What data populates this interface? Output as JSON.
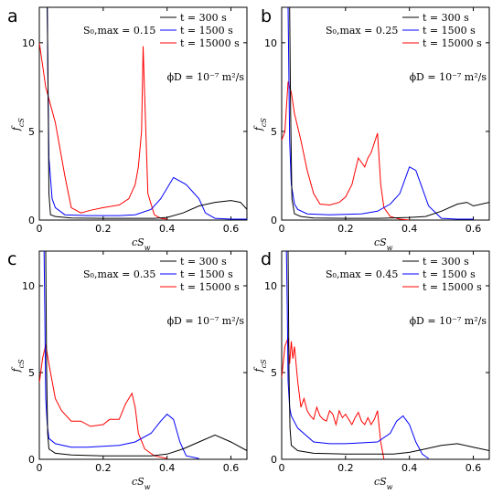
{
  "chart_data": [
    {
      "type": "line",
      "panel_label": "a",
      "annotation": "S₀,max = 0.15",
      "diffusion_note": "ϕD = 10⁻⁷ m²/s",
      "xlabel": "cS_w",
      "ylabel": "f_cS",
      "xlim": [
        0,
        0.65
      ],
      "ylim": [
        0,
        12
      ],
      "x_ticks": [
        0,
        0.2,
        0.4,
        0.6
      ],
      "x_tick_labels": [
        "0",
        "0.2",
        "0.4",
        "0.6"
      ],
      "y_ticks": [
        0,
        5,
        10
      ],
      "y_tick_labels": [
        "0",
        "5",
        "10"
      ],
      "legend": [
        "t = 300 s",
        "t = 1500 s",
        "t = 15000 s"
      ],
      "series": [
        {
          "name": "t = 300 s",
          "color": "#000000",
          "x": [
            0.025,
            0.028,
            0.03,
            0.035,
            0.05,
            0.1,
            0.2,
            0.3,
            0.36,
            0.4,
            0.45,
            0.5,
            0.55,
            0.6,
            0.63,
            0.65
          ],
          "y": [
            12,
            6,
            1.5,
            0.3,
            0.2,
            0.12,
            0.1,
            0.1,
            0.1,
            0.15,
            0.4,
            0.8,
            1.0,
            1.1,
            1.0,
            0.6
          ]
        },
        {
          "name": "t = 1500 s",
          "color": "#0000ff",
          "x": [
            0.025,
            0.027,
            0.03,
            0.04,
            0.05,
            0.08,
            0.15,
            0.25,
            0.3,
            0.35,
            0.38,
            0.42,
            0.46,
            0.5,
            0.52,
            0.55,
            0.6,
            0.65
          ],
          "y": [
            12,
            8,
            3.5,
            1.2,
            0.7,
            0.3,
            0.25,
            0.25,
            0.3,
            0.6,
            1.2,
            2.4,
            2.0,
            1.2,
            0.4,
            0.1,
            0.05,
            0.05
          ]
        },
        {
          "name": "t = 15000 s",
          "color": "#ff0000",
          "x": [
            0.0,
            0.02,
            0.05,
            0.08,
            0.1,
            0.13,
            0.16,
            0.2,
            0.25,
            0.28,
            0.3,
            0.31,
            0.32,
            0.325,
            0.33,
            0.34,
            0.36,
            0.38,
            0.4
          ],
          "y": [
            10,
            7.5,
            5.5,
            2.5,
            0.7,
            0.4,
            0.55,
            0.7,
            0.85,
            1.2,
            2.0,
            3.0,
            5.0,
            9.8,
            7.0,
            1.5,
            0.3,
            0.1,
            0.05
          ]
        }
      ]
    },
    {
      "type": "line",
      "panel_label": "b",
      "annotation": "S₀,max = 0.25",
      "diffusion_note": "ϕD = 10⁻⁷ m²/s",
      "xlabel": "cS_w",
      "ylabel": "f_cS",
      "xlim": [
        0,
        0.65
      ],
      "ylim": [
        0,
        12
      ],
      "x_ticks": [
        0,
        0.2,
        0.4,
        0.6
      ],
      "x_tick_labels": [
        "0",
        "0.2",
        "0.4",
        "0.6"
      ],
      "y_ticks": [
        0,
        5,
        10
      ],
      "y_tick_labels": [
        "0",
        "5",
        "10"
      ],
      "legend": [
        "t = 300 s",
        "t = 1500 s",
        "t = 15000 s"
      ],
      "series": [
        {
          "name": "t = 300 s",
          "color": "#000000",
          "x": [
            0.025,
            0.028,
            0.032,
            0.04,
            0.06,
            0.1,
            0.2,
            0.3,
            0.4,
            0.45,
            0.5,
            0.55,
            0.58,
            0.6,
            0.65
          ],
          "y": [
            12,
            6,
            1.2,
            0.35,
            0.2,
            0.12,
            0.1,
            0.1,
            0.15,
            0.2,
            0.5,
            0.9,
            1.0,
            0.8,
            1.0
          ]
        },
        {
          "name": "t = 1500 s",
          "color": "#0000ff",
          "x": [
            0.02,
            0.022,
            0.025,
            0.03,
            0.04,
            0.05,
            0.08,
            0.15,
            0.25,
            0.3,
            0.34,
            0.37,
            0.4,
            0.42,
            0.44,
            0.46,
            0.5,
            0.55,
            0.6
          ],
          "y": [
            12,
            9,
            4.5,
            2.0,
            0.9,
            0.6,
            0.35,
            0.3,
            0.35,
            0.5,
            0.9,
            1.5,
            3.0,
            2.8,
            1.8,
            0.8,
            0.1,
            0.05,
            0.05
          ]
        },
        {
          "name": "t = 15000 s",
          "color": "#ff0000",
          "x": [
            0.0,
            0.01,
            0.02,
            0.03,
            0.04,
            0.06,
            0.08,
            0.1,
            0.12,
            0.15,
            0.18,
            0.2,
            0.22,
            0.24,
            0.26,
            0.27,
            0.28,
            0.3,
            0.31,
            0.32,
            0.34,
            0.37,
            0.4
          ],
          "y": [
            4.5,
            5.0,
            7.8,
            7.2,
            6.0,
            4.5,
            2.8,
            1.5,
            0.9,
            0.85,
            1.0,
            1.3,
            2.0,
            3.5,
            3.0,
            3.5,
            3.8,
            4.9,
            2.0,
            0.7,
            0.2,
            0.05,
            0.0
          ]
        }
      ]
    },
    {
      "type": "line",
      "panel_label": "c",
      "annotation": "S₀,max = 0.35",
      "diffusion_note": "ϕD = 10⁻⁷ m²/s",
      "xlabel": "cS_w",
      "ylabel": "f_cS",
      "xlim": [
        0,
        0.65
      ],
      "ylim": [
        0,
        12
      ],
      "x_ticks": [
        0,
        0.2,
        0.4,
        0.6
      ],
      "x_tick_labels": [
        "0",
        "0.2",
        "0.4",
        "0.6"
      ],
      "y_ticks": [
        0,
        5,
        10
      ],
      "y_tick_labels": [
        "0",
        "5",
        "10"
      ],
      "legend": [
        "t = 300 s",
        "t = 1500 s",
        "t = 15000 s"
      ],
      "series": [
        {
          "name": "t = 300 s",
          "color": "#000000",
          "x": [
            0.02,
            0.023,
            0.026,
            0.03,
            0.05,
            0.1,
            0.2,
            0.3,
            0.35,
            0.4,
            0.45,
            0.5,
            0.55,
            0.6,
            0.65
          ],
          "y": [
            12,
            5,
            1.5,
            0.6,
            0.35,
            0.25,
            0.2,
            0.2,
            0.2,
            0.3,
            0.6,
            1.0,
            1.4,
            1.0,
            0.5
          ]
        },
        {
          "name": "t = 1500 s",
          "color": "#0000ff",
          "x": [
            0.015,
            0.018,
            0.02,
            0.025,
            0.03,
            0.05,
            0.1,
            0.15,
            0.25,
            0.3,
            0.35,
            0.38,
            0.4,
            0.42,
            0.44,
            0.46,
            0.5
          ],
          "y": [
            12,
            7,
            3.5,
            2.0,
            1.2,
            0.9,
            0.7,
            0.7,
            0.8,
            1.0,
            1.5,
            2.2,
            2.6,
            2.3,
            1.0,
            0.2,
            0.05
          ]
        },
        {
          "name": "t = 15000 s",
          "color": "#ff0000",
          "x": [
            0.0,
            0.01,
            0.02,
            0.03,
            0.05,
            0.07,
            0.1,
            0.13,
            0.16,
            0.2,
            0.22,
            0.25,
            0.27,
            0.29,
            0.3,
            0.31,
            0.33,
            0.36,
            0.4
          ],
          "y": [
            4.4,
            5.8,
            6.6,
            5.5,
            3.5,
            2.8,
            2.2,
            2.2,
            1.9,
            2.0,
            2.3,
            2.3,
            3.2,
            3.8,
            3.0,
            1.5,
            0.6,
            0.2,
            0.05
          ]
        }
      ]
    },
    {
      "type": "line",
      "panel_label": "d",
      "annotation": "S₀,max = 0.45",
      "diffusion_note": "ϕD = 10⁻⁷ m²/s",
      "xlabel": "cS_w",
      "ylabel": "f_cS",
      "xlim": [
        0,
        0.65
      ],
      "ylim": [
        0,
        12
      ],
      "x_ticks": [
        0,
        0.2,
        0.4,
        0.6
      ],
      "x_tick_labels": [
        "0",
        "0.2",
        "0.4",
        "0.6"
      ],
      "y_ticks": [
        0,
        5,
        10
      ],
      "y_tick_labels": [
        "0",
        "5",
        "10"
      ],
      "legend": [
        "t = 300 s",
        "t = 1500 s",
        "t = 15000 s"
      ],
      "series": [
        {
          "name": "t = 300 s",
          "color": "#000000",
          "x": [
            0.02,
            0.023,
            0.026,
            0.03,
            0.05,
            0.1,
            0.2,
            0.3,
            0.35,
            0.4,
            0.45,
            0.5,
            0.55,
            0.6,
            0.65
          ],
          "y": [
            12,
            5,
            1.8,
            0.8,
            0.5,
            0.35,
            0.3,
            0.3,
            0.3,
            0.4,
            0.6,
            0.8,
            0.9,
            0.7,
            0.5
          ]
        },
        {
          "name": "t = 1500 s",
          "color": "#0000ff",
          "x": [
            0.015,
            0.018,
            0.02,
            0.025,
            0.03,
            0.05,
            0.1,
            0.15,
            0.2,
            0.3,
            0.34,
            0.36,
            0.38,
            0.4,
            0.42,
            0.44,
            0.46
          ],
          "y": [
            12,
            8,
            4.5,
            3.0,
            2.5,
            1.8,
            1.0,
            0.9,
            0.9,
            1.0,
            1.5,
            2.2,
            2.5,
            2.0,
            1.0,
            0.3,
            0.05
          ]
        },
        {
          "name": "t = 15000 s",
          "color": "#ff0000",
          "x": [
            0.0,
            0.01,
            0.02,
            0.025,
            0.03,
            0.035,
            0.04,
            0.05,
            0.06,
            0.07,
            0.08,
            0.09,
            0.1,
            0.11,
            0.12,
            0.13,
            0.14,
            0.15,
            0.16,
            0.17,
            0.18,
            0.19,
            0.2,
            0.21,
            0.22,
            0.23,
            0.24,
            0.25,
            0.26,
            0.27,
            0.28,
            0.29,
            0.3,
            0.31,
            0.32
          ],
          "y": [
            4.7,
            6.5,
            7.0,
            5.5,
            6.8,
            5.8,
            6.5,
            4.5,
            3.0,
            3.5,
            2.8,
            2.5,
            2.3,
            3.0,
            2.5,
            2.3,
            2.2,
            2.8,
            2.6,
            2.0,
            2.8,
            2.4,
            2.6,
            2.3,
            2.0,
            2.4,
            2.7,
            2.2,
            2.0,
            2.4,
            2.0,
            2.3,
            2.8,
            1.0,
            0.0
          ]
        }
      ]
    }
  ]
}
